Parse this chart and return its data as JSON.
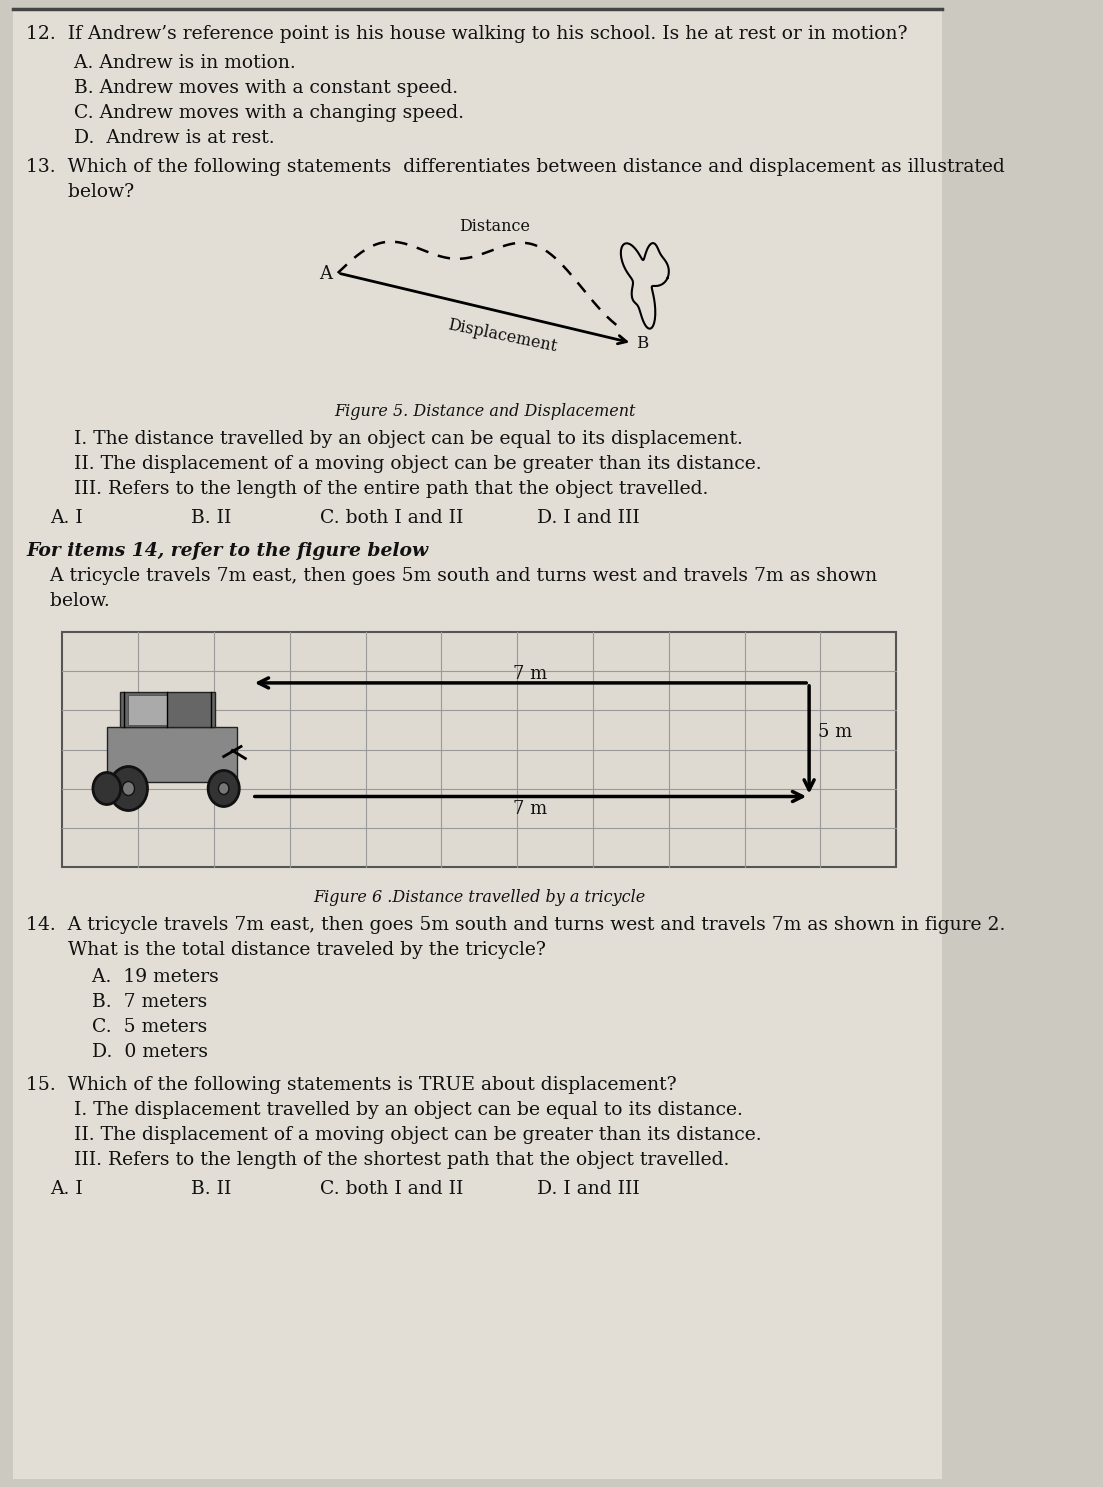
{
  "bg_color": "#ccc9c0",
  "page_bg": "#e2ddd5",
  "text_color": "#111111",
  "q12_text": "12.  If Andrew’s reference point is his house walking to his school. Is he at rest or in motion?",
  "q12_a": "        A. Andrew is in motion.",
  "q12_b": "        B. Andrew moves with a constant speed.",
  "q12_c": "        C. Andrew moves with a changing speed.",
  "q12_d": "        D.  Andrew is at rest.",
  "q13_line1": "13.  Which of the following statements  differentiates between distance and displacement as illustrated",
  "q13_line2": "       below?",
  "fig5_caption": "Figure 5. Distance and Displacement",
  "q13_i": "        I. The distance travelled by an object can be equal to its displacement.",
  "q13_ii": "        II. The displacement of a moving object can be greater than its distance.",
  "q13_iii": "        III. Refers to the length of the entire path that the object travelled.",
  "q13_a": "A. I",
  "q13_b": "B. II",
  "q13_c": "C. both I and II",
  "q13_d": "D. I and III",
  "q14_header": "For items 14, refer to the figure below",
  "q14_intro1": "    A tricycle travels 7m east, then goes 5m south and turns west and travels 7m as shown",
  "q14_intro2": "    below.",
  "fig6_caption": "Figure 6 .Distance travelled by a tricycle",
  "q14_line1": "14.  A tricycle travels 7m east, then goes 5m south and turns west and travels 7m as shown in figure 2.",
  "q14_line2": "       What is the total distance traveled by the tricycle?",
  "q14_a": "           A.  19 meters",
  "q14_b": "           B.  7 meters",
  "q14_c": "           C.  5 meters",
  "q14_d": "           D.  0 meters",
  "q15_text": "15.  Which of the following statements is TRUE about displacement?",
  "q15_i": "        I. The displacement travelled by an object can be equal to its distance.",
  "q15_ii": "        II. The displacement of a moving object can be greater than its distance.",
  "q15_iii": "        III. Refers to the length of the shortest path that the object travelled.",
  "q15_a": "A. I",
  "q15_b": "B. II",
  "q15_c": "C. both I and II",
  "q15_d": "D. I and III"
}
